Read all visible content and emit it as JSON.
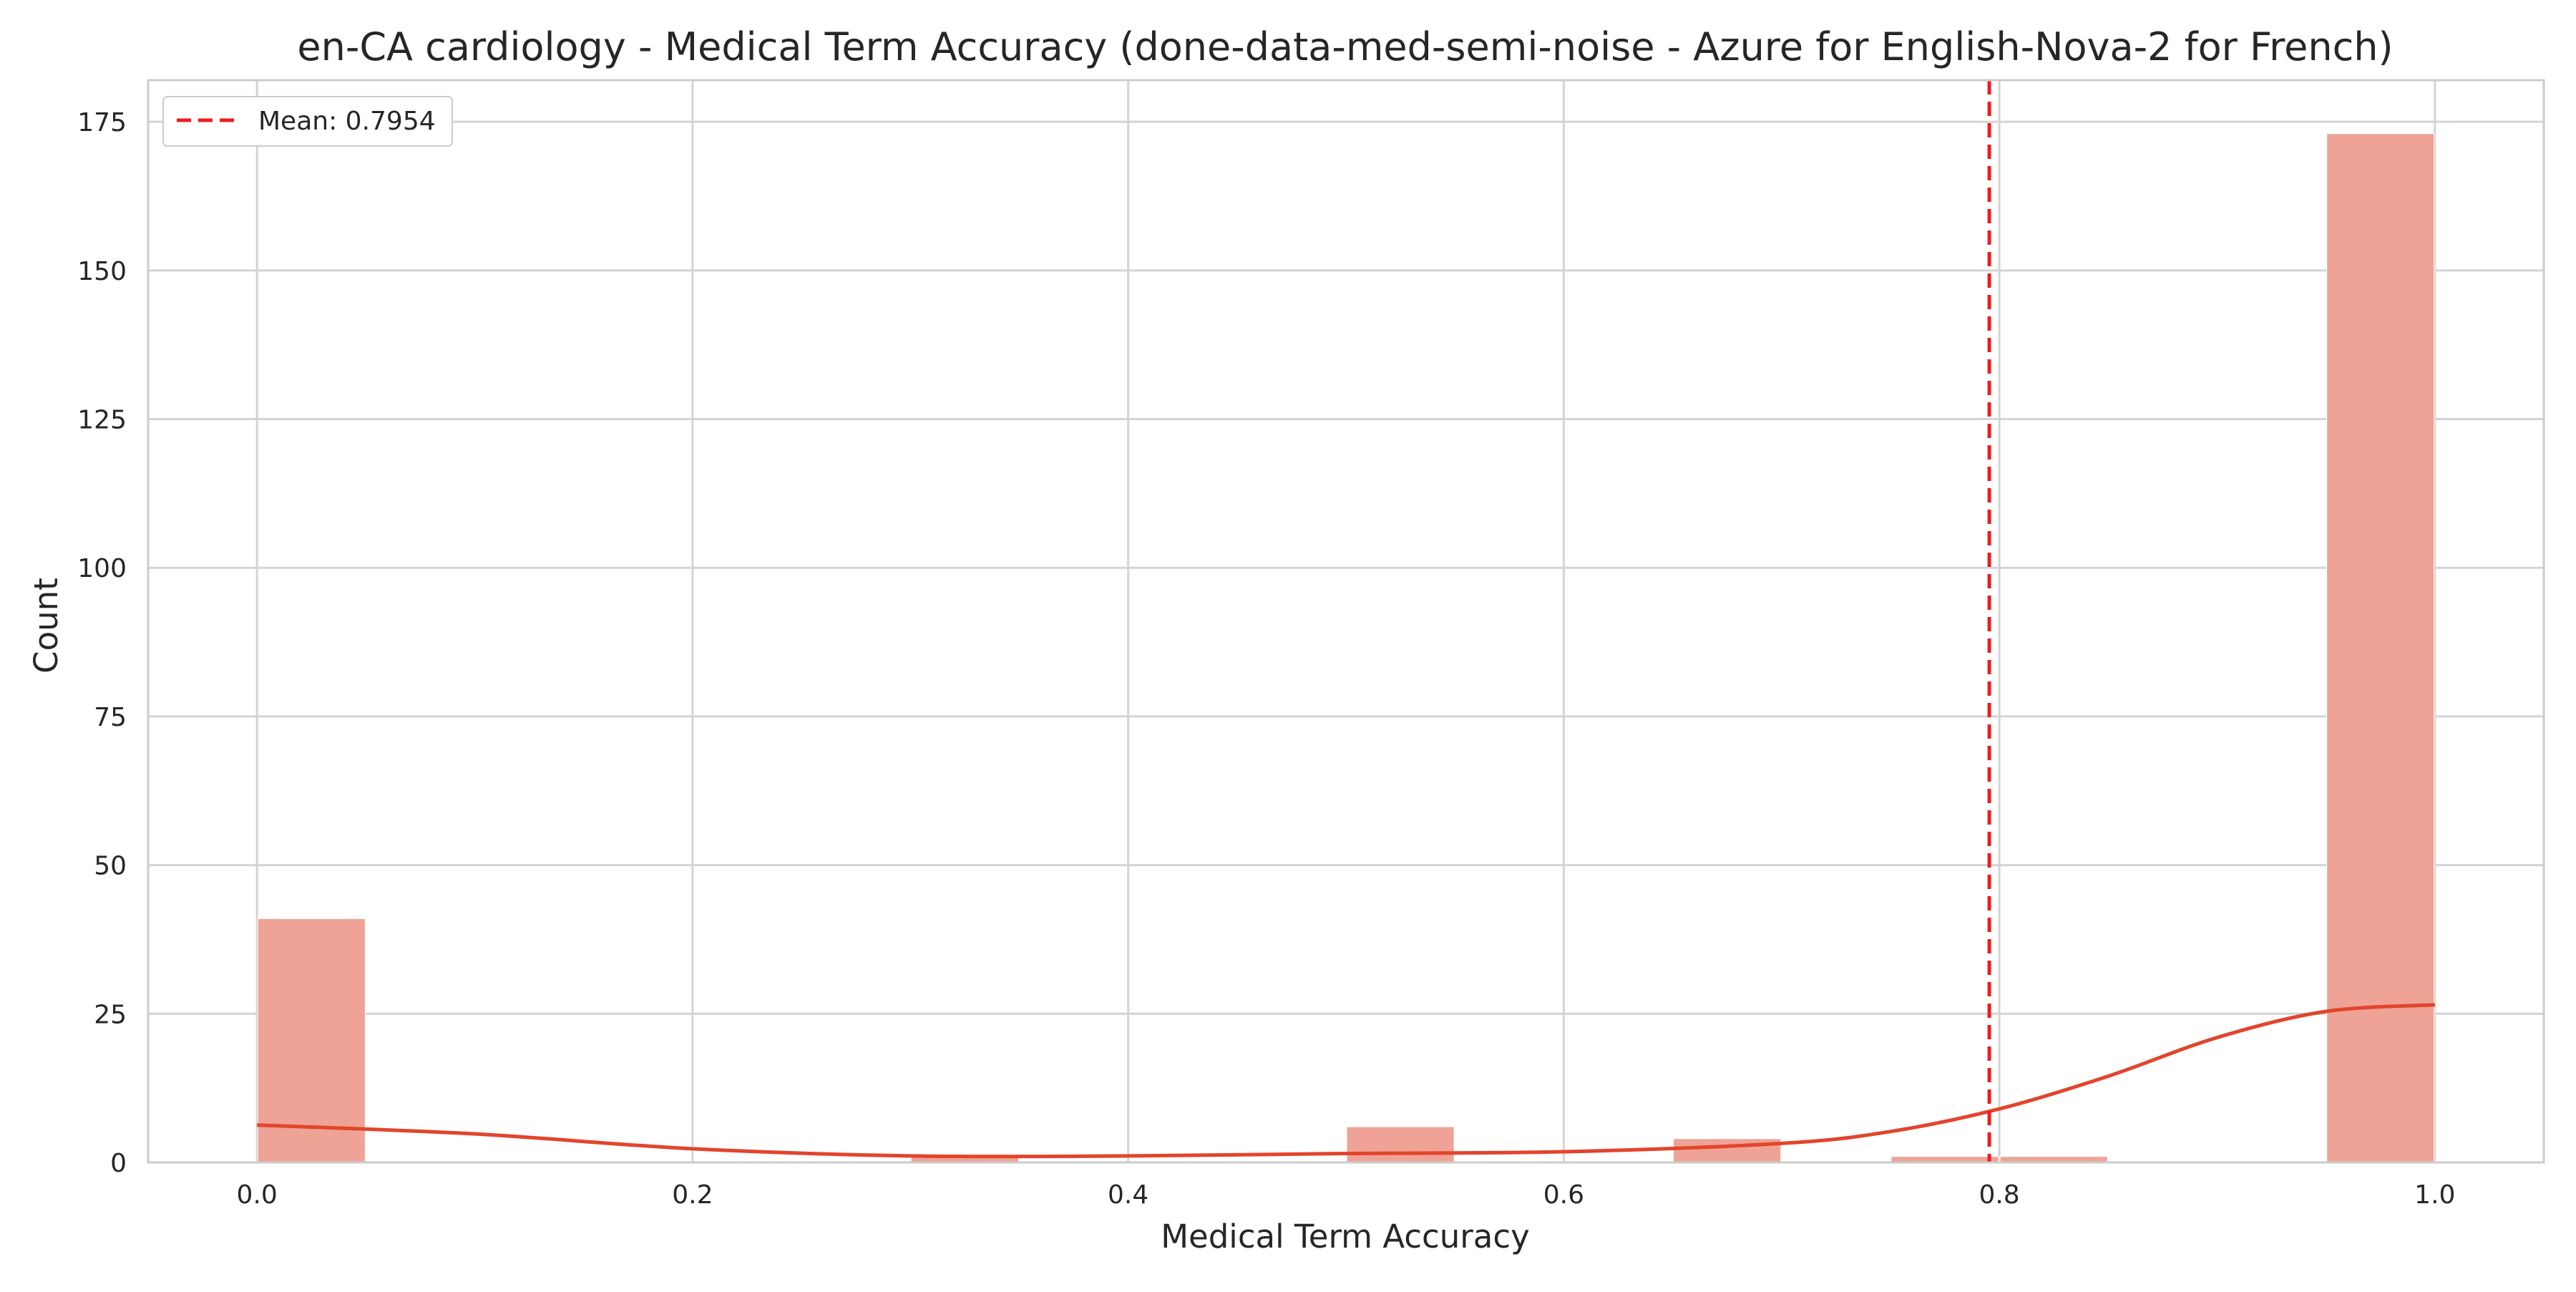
{
  "chart_data": {
    "type": "bar",
    "title": "en-CA cardiology - Medical Term Accuracy (done-data-med-semi-noise - Azure for English-Nova-2 for French)",
    "xlabel": "Medical Term Accuracy",
    "ylabel": "Count",
    "xlim": [
      -0.05,
      1.05
    ],
    "ylim": [
      0,
      182
    ],
    "xticks": [
      0.0,
      0.2,
      0.4,
      0.6,
      0.8,
      1.0
    ],
    "xtick_labels": [
      "0.0",
      "0.2",
      "0.4",
      "0.6",
      "0.8",
      "1.0"
    ],
    "yticks": [
      0,
      25,
      50,
      75,
      100,
      125,
      150,
      175
    ],
    "ytick_labels": [
      "0",
      "25",
      "50",
      "75",
      "100",
      "125",
      "150",
      "175"
    ],
    "grid": true,
    "bin_width": 0.05,
    "bins": [
      {
        "x_start": 0.0,
        "x_end": 0.05,
        "count": 41
      },
      {
        "x_start": 0.05,
        "x_end": 0.1,
        "count": 0
      },
      {
        "x_start": 0.1,
        "x_end": 0.15,
        "count": 0
      },
      {
        "x_start": 0.15,
        "x_end": 0.2,
        "count": 0
      },
      {
        "x_start": 0.2,
        "x_end": 0.25,
        "count": 0
      },
      {
        "x_start": 0.25,
        "x_end": 0.3,
        "count": 0
      },
      {
        "x_start": 0.3,
        "x_end": 0.35,
        "count": 1
      },
      {
        "x_start": 0.35,
        "x_end": 0.4,
        "count": 0
      },
      {
        "x_start": 0.4,
        "x_end": 0.45,
        "count": 0
      },
      {
        "x_start": 0.45,
        "x_end": 0.5,
        "count": 0
      },
      {
        "x_start": 0.5,
        "x_end": 0.55,
        "count": 6
      },
      {
        "x_start": 0.55,
        "x_end": 0.6,
        "count": 0
      },
      {
        "x_start": 0.6,
        "x_end": 0.65,
        "count": 0
      },
      {
        "x_start": 0.65,
        "x_end": 0.7,
        "count": 4
      },
      {
        "x_start": 0.7,
        "x_end": 0.75,
        "count": 0
      },
      {
        "x_start": 0.75,
        "x_end": 0.8,
        "count": 1
      },
      {
        "x_start": 0.8,
        "x_end": 0.85,
        "count": 1
      },
      {
        "x_start": 0.85,
        "x_end": 0.9,
        "count": 0
      },
      {
        "x_start": 0.9,
        "x_end": 0.95,
        "count": 0
      },
      {
        "x_start": 0.95,
        "x_end": 1.0,
        "count": 173
      }
    ],
    "kde": {
      "x": [
        0.0,
        0.1,
        0.2,
        0.3,
        0.4,
        0.5,
        0.6,
        0.7,
        0.75,
        0.8,
        0.85,
        0.9,
        0.95,
        1.0
      ],
      "y": [
        6.3,
        4.8,
        2.3,
        1.1,
        1.1,
        1.5,
        1.8,
        3.2,
        5.2,
        9.0,
        14.5,
        21.0,
        25.4,
        26.5
      ]
    },
    "mean": {
      "value": 0.7954,
      "label": "Mean: 0.7954"
    },
    "legend": {
      "placement": "top-left",
      "entries": [
        "Mean: 0.7954"
      ]
    },
    "colors": {
      "bar_fill": "#eea396",
      "kde_line": "#e2452c",
      "mean_line": "#ee1c1c",
      "grid": "#d4d4d4",
      "spine": "#cccccc"
    }
  }
}
